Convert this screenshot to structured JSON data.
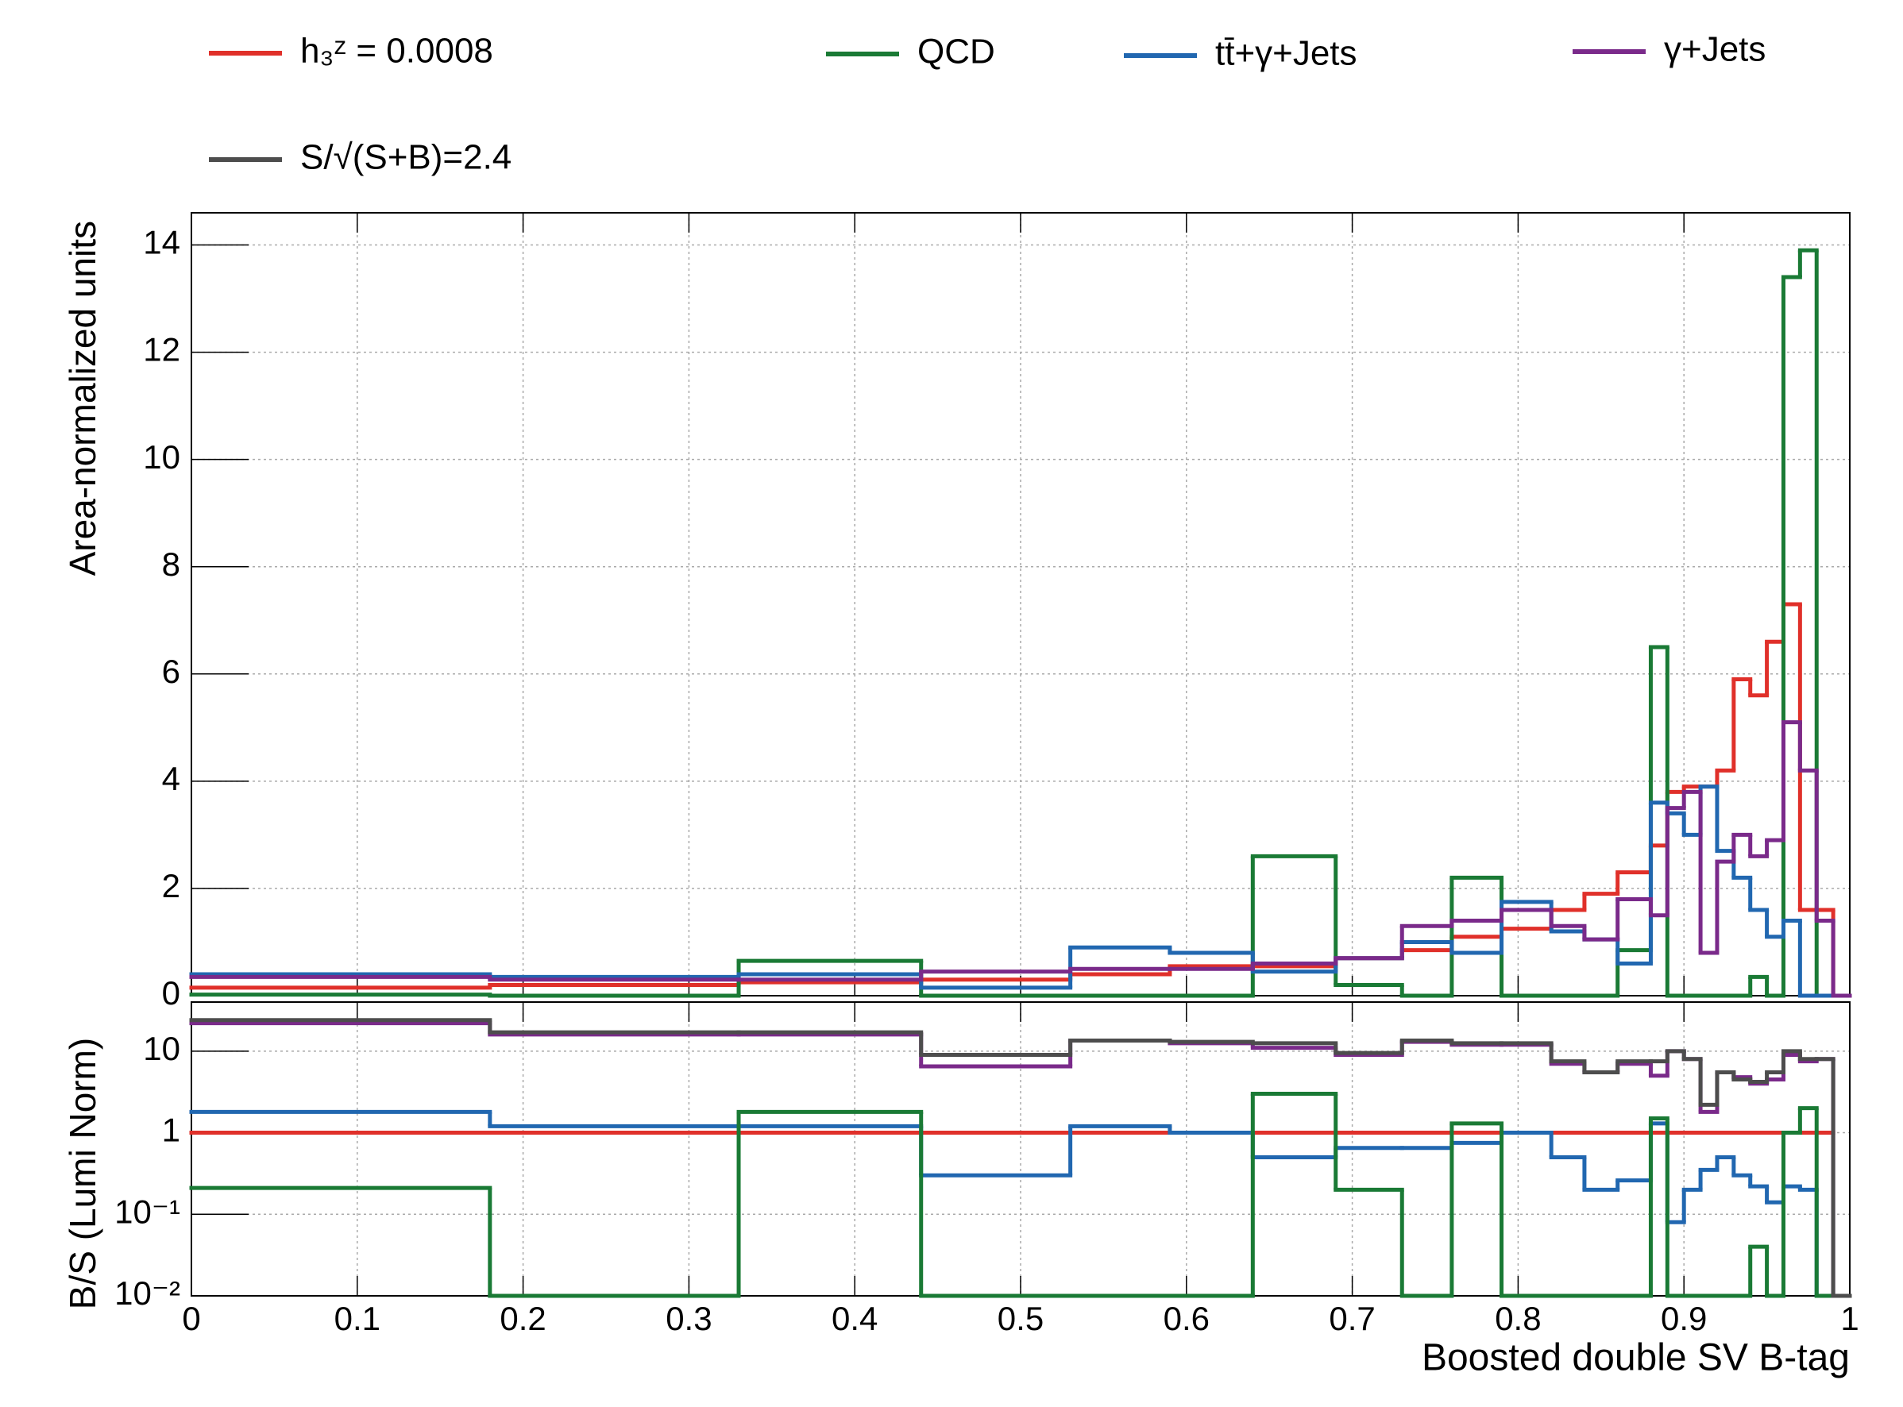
{
  "chart_data": [
    {
      "type": "histogram",
      "ylabel": "Area-normalized units",
      "bins": [
        0,
        0.18,
        0.33,
        0.44,
        0.53,
        0.59,
        0.64,
        0.69,
        0.73,
        0.76,
        0.79,
        0.82,
        0.84,
        0.86,
        0.88,
        0.89,
        0.9,
        0.91,
        0.92,
        0.93,
        0.94,
        0.95,
        0.96,
        0.97,
        0.98,
        0.99,
        1
      ],
      "xlim": [
        0,
        1
      ],
      "ylim": [
        0,
        14.6
      ],
      "yticks": [
        0,
        2,
        4,
        6,
        8,
        10,
        12,
        14
      ],
      "grid": true,
      "series": [
        {
          "name": "h₃ᶻ = 0.0008",
          "color": "#e0302a",
          "values": [
            0.15,
            0.2,
            0.25,
            0.3,
            0.4,
            0.55,
            0.55,
            0.7,
            0.85,
            1.1,
            1.25,
            1.6,
            1.9,
            2.3,
            2.8,
            3.8,
            3.9,
            3.9,
            4.2,
            5.9,
            5.6,
            6.6,
            7.3,
            1.6,
            1.6,
            0
          ]
        },
        {
          "name": "QCD",
          "color": "#1a7a35",
          "values": [
            0.02,
            0,
            0.65,
            0,
            0,
            0,
            2.6,
            0.2,
            0,
            2.2,
            0,
            0,
            0,
            0.85,
            6.5,
            0,
            0,
            0,
            0,
            0,
            0.35,
            0,
            13.4,
            13.9,
            0,
            0
          ]
        },
        {
          "name": "tt̄+γ+Jets",
          "color": "#2167b0",
          "values": [
            0.4,
            0.35,
            0.4,
            0.15,
            0.9,
            0.8,
            0.45,
            0.7,
            1.0,
            0.8,
            1.75,
            1.2,
            1.05,
            0.6,
            3.6,
            3.4,
            3.0,
            3.9,
            2.7,
            2.2,
            1.6,
            1.1,
            1.4,
            0,
            0,
            0
          ]
        },
        {
          "name": "γ+Jets",
          "color": "#7a2a8a",
          "values": [
            0.35,
            0.3,
            0.3,
            0.45,
            0.5,
            0.5,
            0.6,
            0.7,
            1.3,
            1.4,
            1.6,
            1.3,
            1.05,
            1.8,
            1.5,
            3.5,
            3.8,
            0.8,
            2.5,
            3.0,
            2.6,
            2.9,
            5.1,
            4.2,
            1.4,
            0
          ]
        }
      ]
    },
    {
      "type": "histogram",
      "ylabel": "B/S (Lumi Norm)",
      "xlabel": "Boosted double SV B-tag",
      "log_y": true,
      "bins": [
        0,
        0.18,
        0.33,
        0.44,
        0.53,
        0.59,
        0.64,
        0.69,
        0.73,
        0.76,
        0.79,
        0.82,
        0.84,
        0.86,
        0.88,
        0.89,
        0.9,
        0.91,
        0.92,
        0.93,
        0.94,
        0.95,
        0.96,
        0.97,
        0.98,
        0.99,
        1
      ],
      "xlim": [
        0,
        1
      ],
      "xticks": [
        0,
        0.1,
        0.2,
        0.3,
        0.4,
        0.5,
        0.6,
        0.7,
        0.8,
        0.9,
        1
      ],
      "ylim": [
        0.01,
        40
      ],
      "yticks": [
        {
          "value": 0.01,
          "label": "10⁻²"
        },
        {
          "value": 0.1,
          "label": "10⁻¹"
        },
        1,
        10
      ],
      "grid": true,
      "series": [
        {
          "color": "#e0302a",
          "values": [
            1,
            1,
            1,
            1,
            1,
            1,
            1,
            1,
            1,
            1,
            1,
            1,
            1,
            1,
            1,
            1,
            1,
            1,
            1,
            1,
            1,
            1,
            1,
            1,
            1,
            null
          ]
        },
        {
          "color": "#2167b0",
          "values": [
            1.8,
            1.2,
            1.2,
            0.3,
            1.2,
            1.0,
            0.5,
            0.65,
            0.65,
            0.75,
            1.0,
            0.5,
            0.2,
            0.26,
            1.3,
            0.08,
            0.2,
            0.35,
            0.5,
            0.3,
            0.22,
            0.14,
            0.22,
            0.2,
            0.01,
            0.01
          ]
        },
        {
          "color": "#1a7a35",
          "values": [
            0.21,
            0.01,
            1.8,
            0.01,
            0.01,
            0.01,
            3,
            0.2,
            0.01,
            1.3,
            0.01,
            0.01,
            0.01,
            0.01,
            1.5,
            0.01,
            0.01,
            0.01,
            0.01,
            0.01,
            0.04,
            0.01,
            1.0,
            2.0,
            0.01,
            0.01
          ]
        },
        {
          "color": "#7a2a8a",
          "values": [
            22,
            16,
            16,
            6.5,
            13.5,
            12.5,
            11,
            9,
            13,
            12,
            12,
            7,
            5.5,
            7,
            5,
            10,
            8,
            1.8,
            5.5,
            4.8,
            4,
            4.5,
            9,
            7.5,
            8,
            0.01
          ]
        },
        {
          "name": "S/√(S+B)=2.4",
          "color": "#4d4d4d",
          "values": [
            24,
            17,
            17,
            9,
            13.5,
            13,
            12.5,
            9.5,
            13.5,
            12.5,
            12.5,
            7.5,
            5.5,
            7.5,
            7.5,
            10,
            8,
            2.2,
            5.5,
            4.5,
            4.2,
            5.5,
            10,
            8,
            8,
            0.01
          ]
        }
      ]
    }
  ]
}
